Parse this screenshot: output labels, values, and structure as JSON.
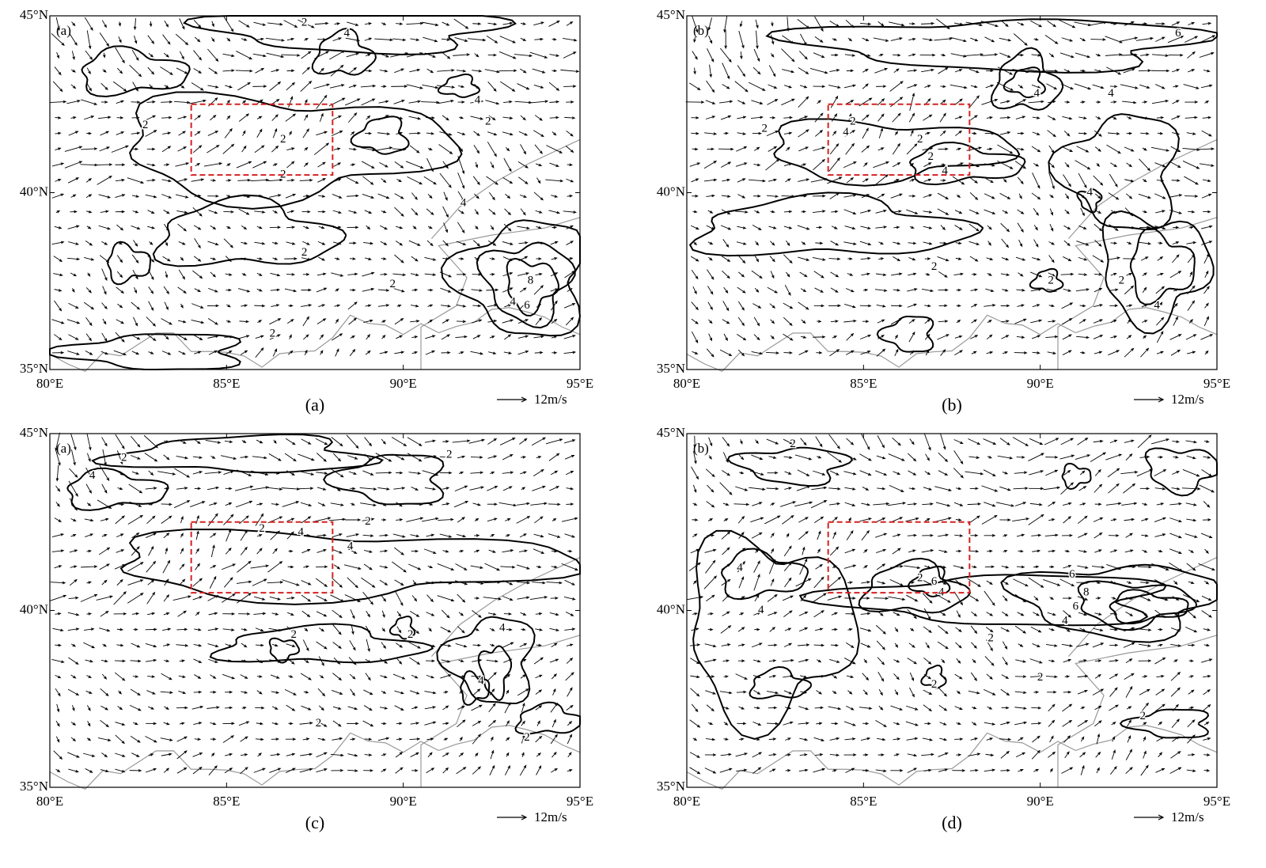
{
  "lon_ticks": [
    "80°E",
    "85°E",
    "90°E",
    "95°E"
  ],
  "lat_ticks": [
    "35°N",
    "40°N",
    "45°N"
  ],
  "reference_vector": "12m/s",
  "panels": [
    {
      "caption": "(a)",
      "inset_label": "(a)",
      "contour_labels": [
        "2",
        "2",
        "2",
        "2",
        "4",
        "8",
        "6",
        "4",
        "2",
        "4",
        "4",
        "2",
        "2",
        "2"
      ]
    },
    {
      "caption": "(b)",
      "inset_label": "(b)",
      "contour_labels": [
        "2",
        "4",
        "2",
        "2",
        "4",
        "2",
        "4",
        "4",
        "4",
        "2",
        "4",
        "2",
        "6",
        "2"
      ]
    },
    {
      "caption": "(c)",
      "inset_label": "(a)",
      "contour_labels": [
        "2",
        "4",
        "2",
        "4",
        "4",
        "2",
        "2",
        "2",
        "4",
        "2",
        "4",
        "2",
        "2"
      ]
    },
    {
      "caption": "(d)",
      "inset_label": "(b)",
      "contour_labels": [
        "2",
        "4",
        "4",
        "2",
        "6",
        "4",
        "6",
        "8",
        "6",
        "4",
        "2",
        "2",
        "2",
        "2"
      ]
    }
  ]
}
